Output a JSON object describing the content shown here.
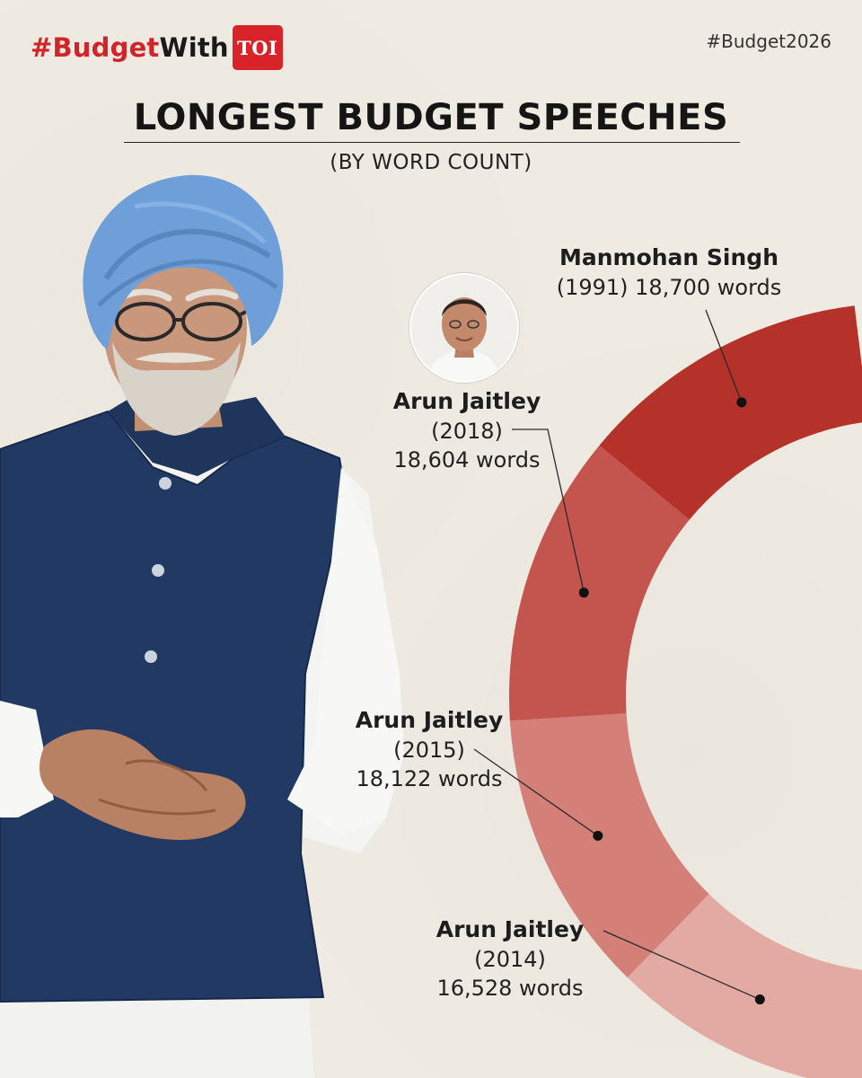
{
  "brand": {
    "hash": "#Budget",
    "with": "With",
    "logo_text": "TOI"
  },
  "hashtag": "#Budget2026",
  "title": "LONGEST BUDGET SPEECHES",
  "subtitle": "(BY WORD COUNT)",
  "colors": {
    "background": "#efebe3",
    "brand_red": "#d0232a",
    "turban": "#6f9fd8",
    "jacket": "#223a63"
  },
  "chart_data": {
    "type": "pie",
    "variant": "donut",
    "series": [
      {
        "name": "Manmohan Singh",
        "year": "(1991)",
        "value_label": "18,700 words",
        "value": 18700,
        "color": "#b5322b"
      },
      {
        "name": "Arun Jaitley",
        "year": "(2018)",
        "value_label": "18,604 words",
        "value": 18604,
        "color": "#c4544e"
      },
      {
        "name": "Arun Jaitley",
        "year": "(2015)",
        "value_label": "18,122 words",
        "value": 18122,
        "color": "#d47f78"
      },
      {
        "name": "Arun Jaitley",
        "year": "(2014)",
        "value_label": "16,528 words",
        "value": 16528,
        "color": "#e3aaa3"
      }
    ],
    "labels": [
      {
        "name": "Manmohan Singh",
        "line2": "(1991) 18,700 words"
      },
      {
        "name": "Arun Jaitley",
        "line2": "(2018)",
        "line3": "18,604 words"
      },
      {
        "name": "Arun Jaitley",
        "line2": "(2015)",
        "line3": "18,122 words"
      },
      {
        "name": "Arun Jaitley",
        "line2": "(2014)",
        "line3": "16,528 words"
      }
    ]
  },
  "photo": {
    "person": "Manmohan Singh",
    "inset_person": "Arun Jaitley"
  }
}
